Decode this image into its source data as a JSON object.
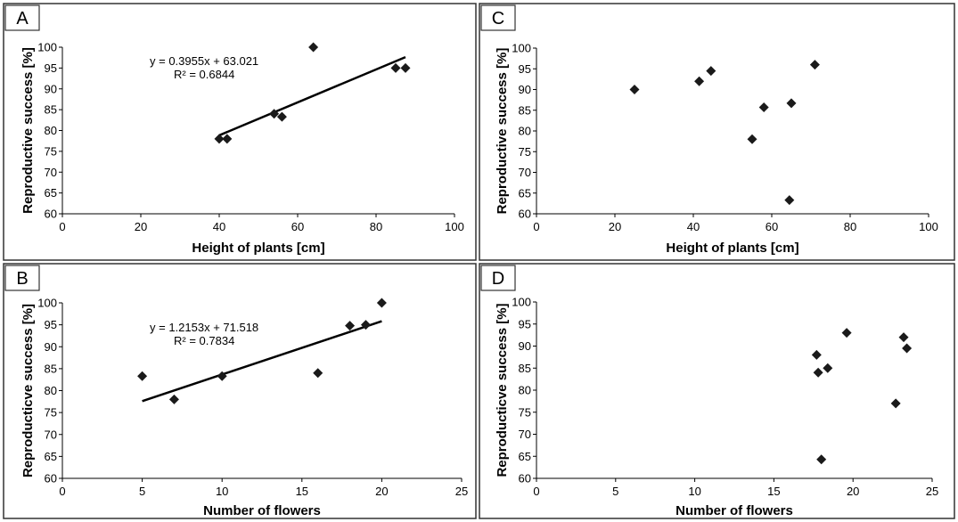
{
  "chart_data": [
    {
      "panel": "A",
      "type": "scatter",
      "xlabel": "Height of plants [cm]",
      "ylabel": "Reproductive success [%]",
      "xlim": [
        0,
        100
      ],
      "ylim": [
        60,
        100
      ],
      "xticks": [
        0,
        20,
        40,
        60,
        80,
        100
      ],
      "yticks": [
        60,
        65,
        70,
        75,
        80,
        85,
        90,
        95,
        100
      ],
      "points": [
        {
          "x": 40,
          "y": 78
        },
        {
          "x": 42,
          "y": 78
        },
        {
          "x": 54,
          "y": 84
        },
        {
          "x": 56,
          "y": 83.3
        },
        {
          "x": 64,
          "y": 100
        },
        {
          "x": 85,
          "y": 95
        },
        {
          "x": 87.5,
          "y": 95
        }
      ],
      "trendline": {
        "slope": 0.3955,
        "intercept": 63.021,
        "x_range": [
          40,
          87.5
        ]
      },
      "equation": "y = 0.3955x + 63.021",
      "r2": "R² = 0.6844"
    },
    {
      "panel": "B",
      "type": "scatter",
      "xlabel": "Number of flowers",
      "ylabel": "Reproducticve success [%]",
      "xlim": [
        0,
        25
      ],
      "ylim": [
        60,
        100
      ],
      "xticks": [
        0,
        5,
        10,
        15,
        20,
        25
      ],
      "yticks": [
        60,
        65,
        70,
        75,
        80,
        85,
        90,
        95,
        100
      ],
      "points": [
        {
          "x": 5,
          "y": 83.3
        },
        {
          "x": 7,
          "y": 78
        },
        {
          "x": 10,
          "y": 83.3
        },
        {
          "x": 16,
          "y": 84
        },
        {
          "x": 18,
          "y": 94.8
        },
        {
          "x": 19,
          "y": 95
        },
        {
          "x": 20,
          "y": 100
        }
      ],
      "trendline": {
        "slope": 1.2153,
        "intercept": 71.518,
        "x_range": [
          5,
          20
        ]
      },
      "equation": "y = 1.2153x + 71.518",
      "r2": "R² = 0.7834"
    },
    {
      "panel": "C",
      "type": "scatter",
      "xlabel": "Height of plants [cm]",
      "ylabel": "Reproductive success [%]",
      "xlim": [
        0,
        100
      ],
      "ylim": [
        60,
        100
      ],
      "xticks": [
        0,
        20,
        40,
        60,
        80,
        100
      ],
      "yticks": [
        60,
        65,
        70,
        75,
        80,
        85,
        90,
        95,
        100
      ],
      "points": [
        {
          "x": 25,
          "y": 90
        },
        {
          "x": 41.5,
          "y": 92
        },
        {
          "x": 44.5,
          "y": 94.5
        },
        {
          "x": 55,
          "y": 78
        },
        {
          "x": 58,
          "y": 85.7
        },
        {
          "x": 64.5,
          "y": 63.3
        },
        {
          "x": 65,
          "y": 86.7
        },
        {
          "x": 71,
          "y": 96
        }
      ]
    },
    {
      "panel": "D",
      "type": "scatter",
      "xlabel": "Number of flowers",
      "ylabel": "Reproducticve success [%]",
      "xlim": [
        0,
        25
      ],
      "ylim": [
        60,
        100
      ],
      "xticks": [
        0,
        5,
        10,
        15,
        20,
        25
      ],
      "yticks": [
        60,
        65,
        70,
        75,
        80,
        85,
        90,
        95,
        100
      ],
      "points": [
        {
          "x": 17.7,
          "y": 88
        },
        {
          "x": 17.8,
          "y": 84
        },
        {
          "x": 18,
          "y": 64.3
        },
        {
          "x": 18.4,
          "y": 85
        },
        {
          "x": 19.6,
          "y": 93
        },
        {
          "x": 22.7,
          "y": 77
        },
        {
          "x": 23.2,
          "y": 92
        },
        {
          "x": 23.4,
          "y": 89.5
        }
      ]
    }
  ]
}
